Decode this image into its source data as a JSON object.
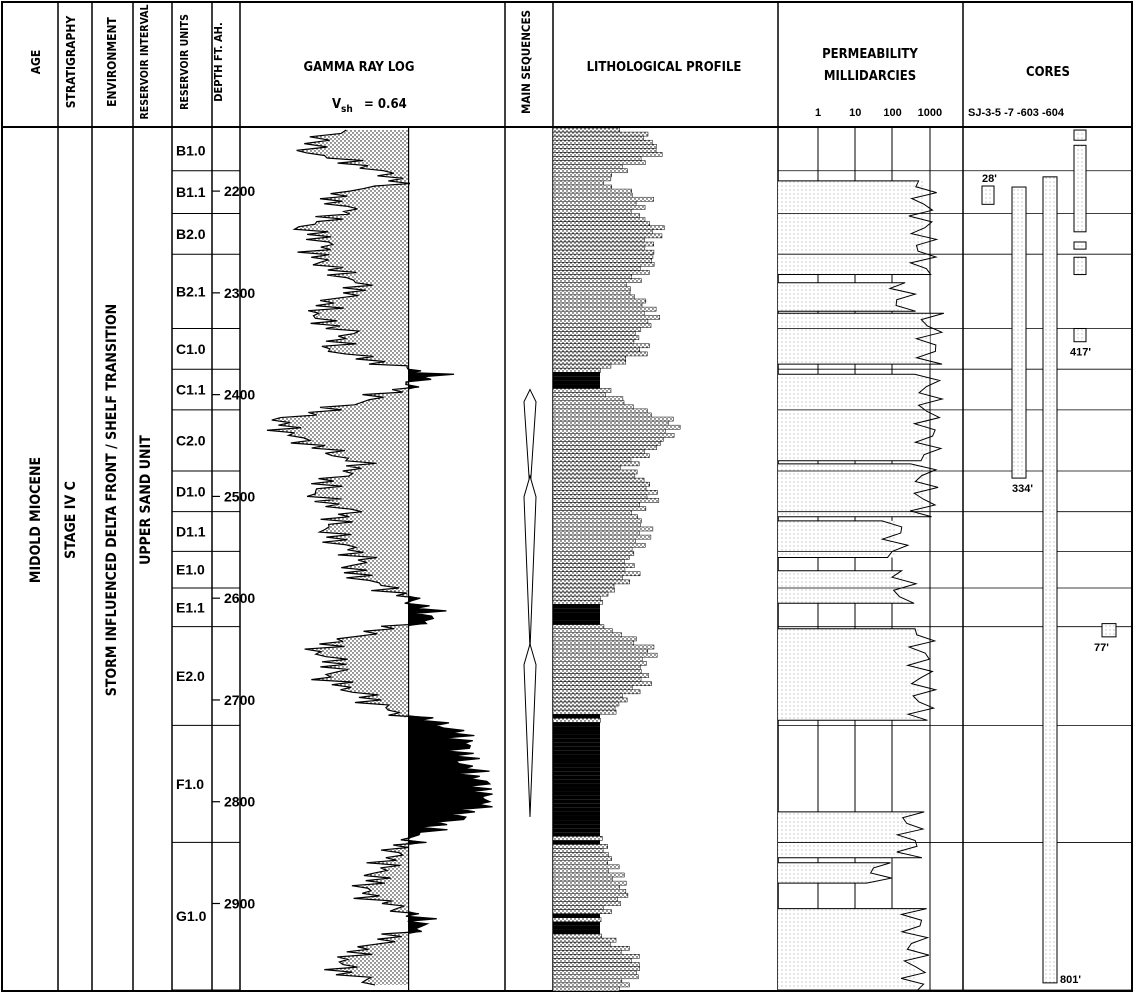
{
  "headers": {
    "age": "AGE",
    "stratigraphy": "STRATIGRAPHY",
    "environment": "ENVIRONMENT",
    "reservoir_interval": "RESERVOIR INTERVAL",
    "reservoir_units": "RESERVOIR UNITS",
    "depth": "DEPTH FT. AH.",
    "gamma_title": "GAMMA RAY LOG",
    "vsh_label": "V",
    "vsh_sub": "sh",
    "vsh_value": "= 0.64",
    "main_sequences": "MAIN SEQUENCES",
    "litho": "LITHOLOGICAL PROFILE",
    "perm_line1": "PERMEABILITY",
    "perm_line2": "MILLIDARCIES",
    "perm_ticks": [
      "1",
      "10",
      "100",
      "1000"
    ],
    "cores": "CORES",
    "core_wells": "SJ-3-5  -7 -603 -604"
  },
  "columns": {
    "age": "MIDOLD MIOCENE",
    "stratigraphy": "STAGE IV C",
    "environment": "STORM INFLUENCED DELTA FRONT / SHELF TRANSITION",
    "reservoir_interval": "UPPER SAND UNIT"
  },
  "units": [
    "B1.0",
    "B1.1",
    "B2.0",
    "B2.1",
    "C1.0",
    "C1.1",
    "C2.0",
    "D1.0",
    "D1.1",
    "E1.0",
    "E1.1",
    "E2.0",
    "F1.0",
    "G1.0"
  ],
  "chart_data": {
    "type": "well-log",
    "depth_unit": "ft",
    "depth_range": [
      2138,
      2985
    ],
    "depth_ticks": [
      2200,
      2300,
      2400,
      2500,
      2600,
      2700,
      2800,
      2900
    ],
    "reservoir_units": [
      {
        "name": "B1.0",
        "top": 2140,
        "base": 2180
      },
      {
        "name": "B1.1",
        "top": 2180,
        "base": 2222
      },
      {
        "name": "B2.0",
        "top": 2222,
        "base": 2262
      },
      {
        "name": "B2.1",
        "top": 2262,
        "base": 2335
      },
      {
        "name": "C1.0",
        "top": 2335,
        "base": 2375
      },
      {
        "name": "C1.1",
        "top": 2375,
        "base": 2415
      },
      {
        "name": "C2.0",
        "top": 2415,
        "base": 2475
      },
      {
        "name": "D1.0",
        "top": 2475,
        "base": 2515
      },
      {
        "name": "D1.1",
        "top": 2515,
        "base": 2554
      },
      {
        "name": "E1.0",
        "top": 2554,
        "base": 2590
      },
      {
        "name": "E1.1",
        "top": 2590,
        "base": 2628
      },
      {
        "name": "E2.0",
        "top": 2628,
        "base": 2725
      },
      {
        "name": "F1.0",
        "top": 2725,
        "base": 2840
      },
      {
        "name": "G1.0",
        "top": 2840,
        "base": 2985
      }
    ],
    "gamma_ray": {
      "vsh_cutoff": 0.64,
      "x_range": [
        0,
        1
      ],
      "depths": [
        2140,
        2160,
        2175,
        2190,
        2205,
        2220,
        2235,
        2250,
        2265,
        2280,
        2295,
        2310,
        2325,
        2340,
        2355,
        2370,
        2380,
        2395,
        2410,
        2425,
        2440,
        2455,
        2470,
        2485,
        2500,
        2515,
        2530,
        2545,
        2560,
        2575,
        2590,
        2605,
        2620,
        2635,
        2650,
        2665,
        2680,
        2695,
        2710,
        2725,
        2740,
        2755,
        2770,
        2785,
        2800,
        2815,
        2830,
        2845,
        2860,
        2875,
        2890,
        2905,
        2920,
        2935,
        2950,
        2965,
        2980
      ],
      "values": [
        0.35,
        0.2,
        0.45,
        0.62,
        0.3,
        0.4,
        0.2,
        0.3,
        0.25,
        0.35,
        0.45,
        0.3,
        0.25,
        0.4,
        0.3,
        0.55,
        0.75,
        0.6,
        0.4,
        0.1,
        0.15,
        0.3,
        0.45,
        0.3,
        0.25,
        0.4,
        0.3,
        0.35,
        0.45,
        0.4,
        0.55,
        0.68,
        0.75,
        0.45,
        0.25,
        0.35,
        0.3,
        0.45,
        0.55,
        0.8,
        0.88,
        0.86,
        0.9,
        0.95,
        0.98,
        0.85,
        0.7,
        0.6,
        0.55,
        0.5,
        0.45,
        0.6,
        0.72,
        0.55,
        0.4,
        0.35,
        0.5
      ]
    },
    "permeability": {
      "scale": "log",
      "x_ticks": [
        1,
        10,
        100,
        1000
      ],
      "intervals": [
        {
          "top": 2190,
          "base": 2282,
          "value": 650
        },
        {
          "top": 2290,
          "base": 2318,
          "value": 180
        },
        {
          "top": 2320,
          "base": 2370,
          "value": 1000
        },
        {
          "top": 2380,
          "base": 2465,
          "value": 900
        },
        {
          "top": 2468,
          "base": 2520,
          "value": 700
        },
        {
          "top": 2524,
          "base": 2560,
          "value": 120
        },
        {
          "top": 2573,
          "base": 2605,
          "value": 180
        },
        {
          "top": 2630,
          "base": 2720,
          "value": 600
        },
        {
          "top": 2810,
          "base": 2855,
          "value": 300
        },
        {
          "top": 2860,
          "base": 2880,
          "value": 40
        },
        {
          "top": 2905,
          "base": 2985,
          "value": 400
        }
      ]
    },
    "main_sequences": [
      {
        "top": 2395,
        "base": 2495
      },
      {
        "top": 2480,
        "base": 2650
      },
      {
        "top": 2645,
        "base": 2815
      }
    ],
    "cores": [
      {
        "well": "SJ-3",
        "top": 2195,
        "base": 2213,
        "length_label": "28'"
      },
      {
        "well": "-5",
        "top": 2196,
        "base": 2482,
        "length_label": "334'"
      },
      {
        "well": "-7",
        "top": 2186,
        "base": 2978,
        "length_label": "801'"
      },
      {
        "well": "-603",
        "top": 2140,
        "base": 2150,
        "length_label": ""
      },
      {
        "well": "-603",
        "top": 2155,
        "base": 2240,
        "length_label": ""
      },
      {
        "well": "-603",
        "top": 2250,
        "base": 2257,
        "length_label": ""
      },
      {
        "well": "-603",
        "top": 2265,
        "base": 2282,
        "length_label": ""
      },
      {
        "well": "-603",
        "top": 2335,
        "base": 2348,
        "length_label": "417'"
      },
      {
        "well": "-604",
        "top": 2625,
        "base": 2638,
        "length_label": "77'"
      }
    ]
  }
}
